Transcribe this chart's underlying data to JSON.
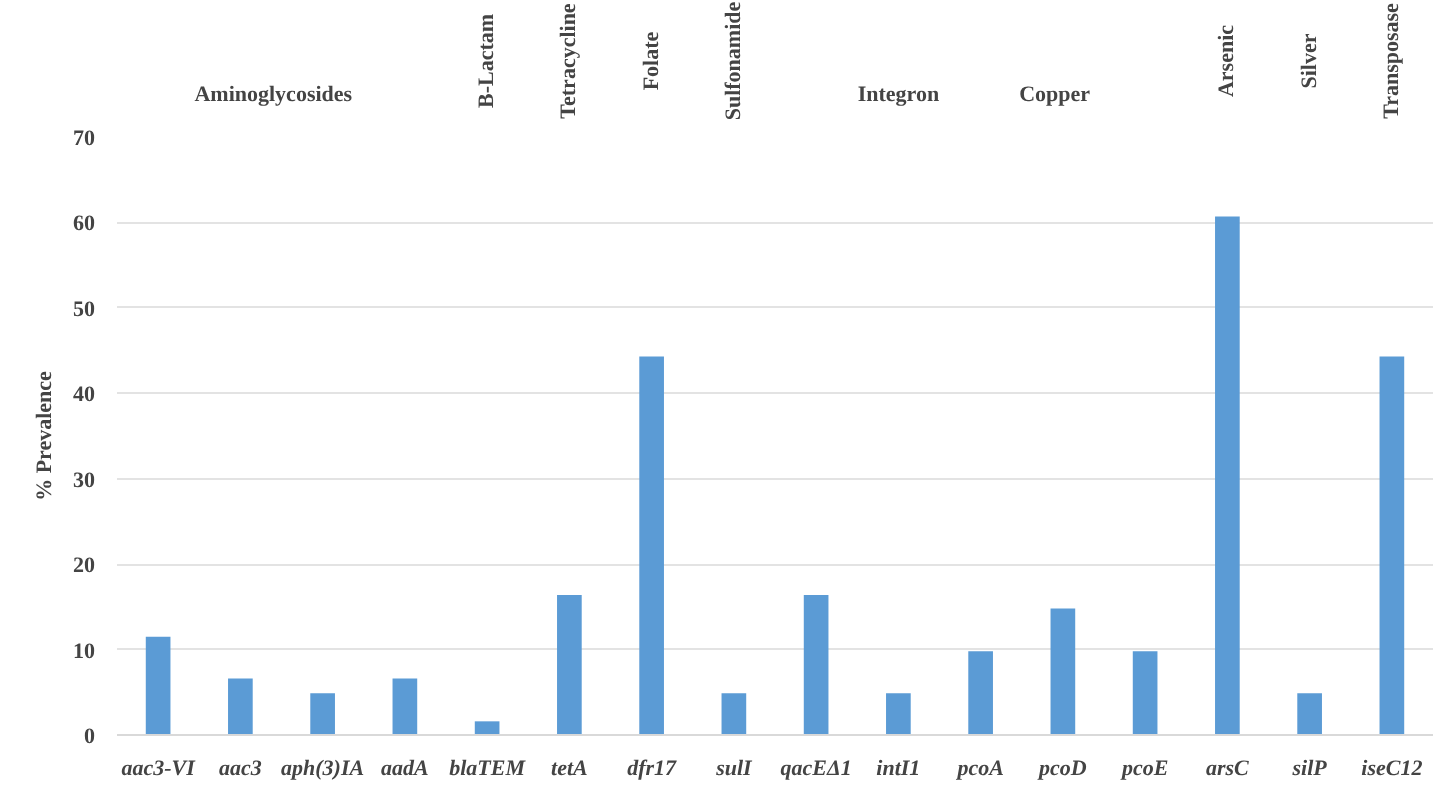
{
  "chart_data": {
    "type": "bar",
    "ylabel": "% Prevalence",
    "categories": [
      "aac3-VI",
      "aac3",
      "aph(3)IA",
      "aadA",
      "blaTEM",
      "tetA",
      "dfr17",
      "sulI",
      "qacEΔ1",
      "intI1",
      "pcoA",
      "pcoD",
      "pcoE",
      "arsC",
      "silP",
      "iseC12"
    ],
    "values": [
      11.5,
      6.6,
      4.9,
      6.6,
      1.6,
      16.4,
      44.3,
      4.9,
      16.4,
      4.9,
      9.8,
      14.8,
      9.8,
      60.7,
      4.9,
      44.3
    ],
    "color": "#5b9bd5",
    "ylim": [
      0,
      70
    ],
    "yticks": [
      0,
      10,
      20,
      30,
      40,
      50,
      60,
      70
    ],
    "grid": "y",
    "annotations": [
      "Aminoglycosides",
      "B-Lactam",
      "Tetracycline",
      "Folate",
      "Sulfonamide",
      "Integron",
      "Copper",
      "Arsenic",
      "Silver",
      "Transposase"
    ]
  }
}
